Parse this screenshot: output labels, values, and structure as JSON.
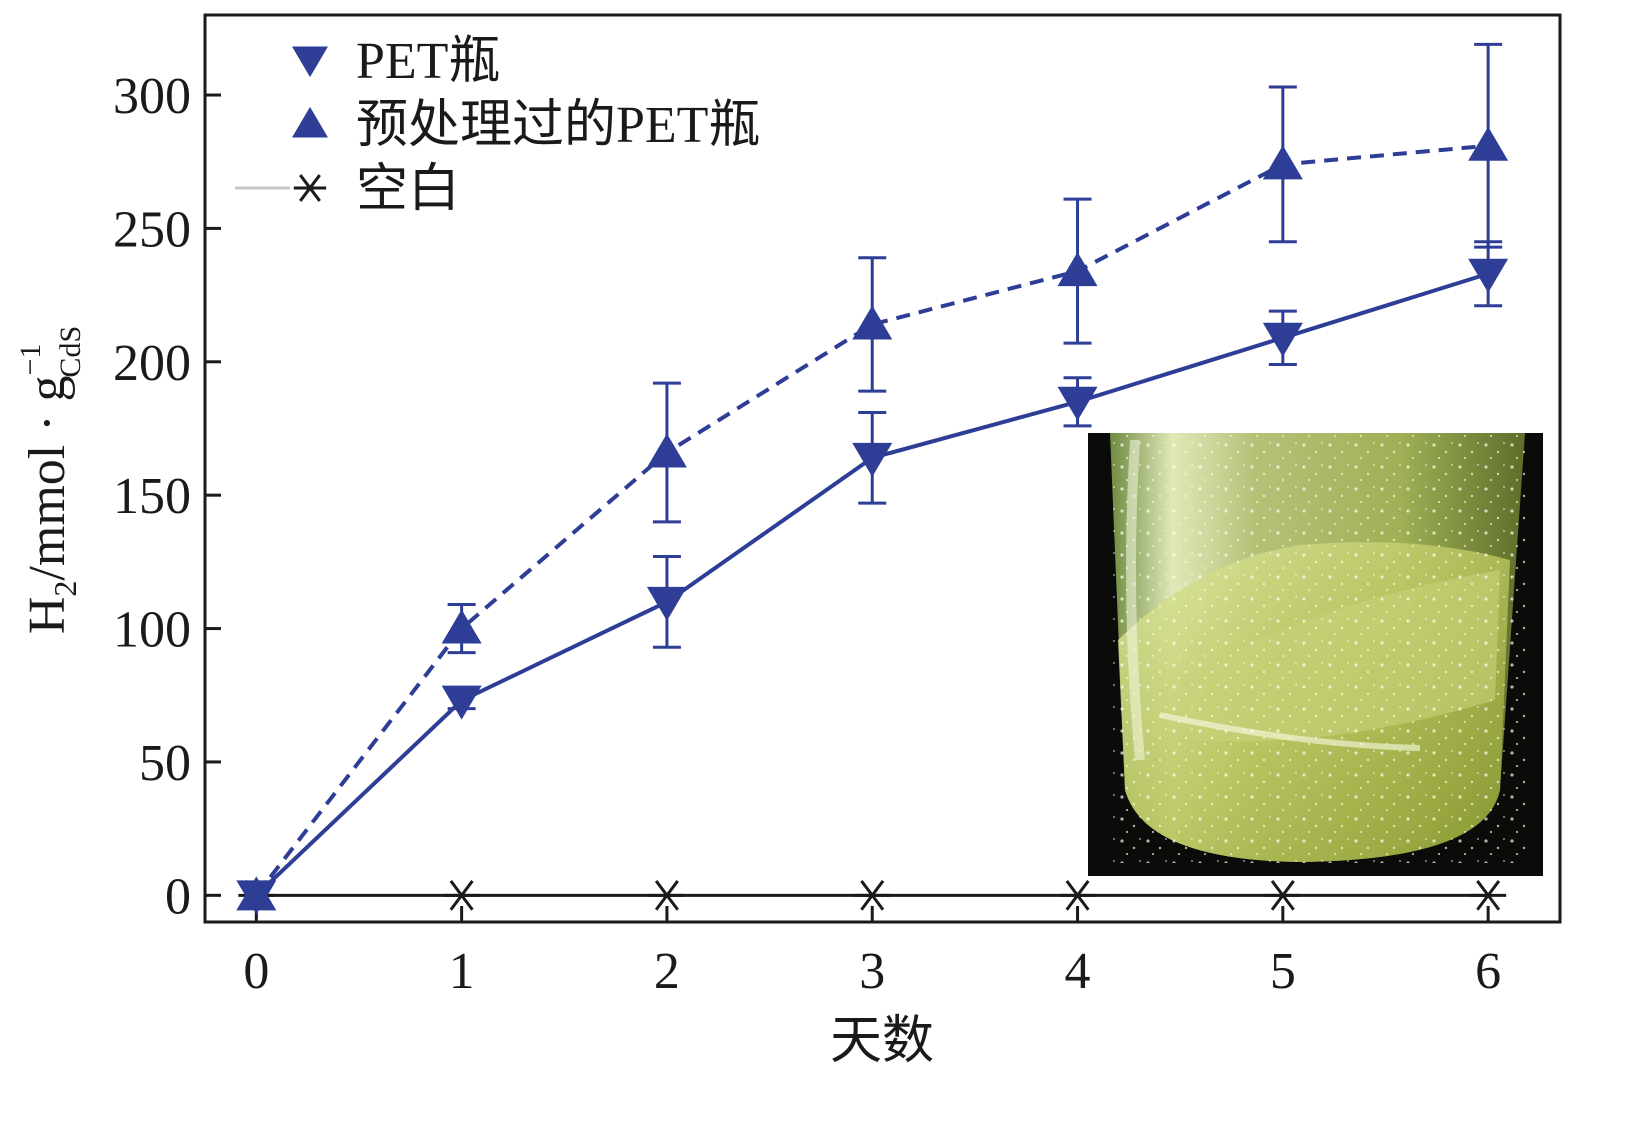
{
  "chart_data": {
    "type": "line",
    "xlabel": "天数",
    "ylabel": {
      "main": "H",
      "main_sub": "2",
      "unit": "/mmol · g",
      "unit_sup": "−1",
      "unit_sub": "CdS"
    },
    "x": [
      0,
      1,
      2,
      3,
      4,
      5,
      6
    ],
    "xlim": [
      -0.25,
      6.35
    ],
    "ylim": [
      -10,
      330
    ],
    "x_ticks": [
      "0",
      "1",
      "2",
      "3",
      "4",
      "5",
      "6"
    ],
    "y_ticks": [
      "0",
      "50",
      "100",
      "150",
      "200",
      "250",
      "300"
    ],
    "grid": false,
    "legend_position": "top-left",
    "series": [
      {
        "name": "PET瓶",
        "marker": "triangle-down",
        "line": "solid",
        "color": "#2e3e96",
        "values": [
          0,
          73,
          110,
          164,
          185,
          209,
          233
        ],
        "error": [
          0,
          3,
          17,
          17,
          9,
          10,
          12
        ]
      },
      {
        "name": "预处理过的PET瓶",
        "marker": "triangle-up",
        "line": "dashed",
        "color": "#2e3e96",
        "values": [
          0,
          100,
          166,
          214,
          234,
          274,
          281
        ],
        "error": [
          0,
          9,
          26,
          25,
          27,
          29,
          38
        ]
      },
      {
        "name": "空白",
        "marker": "asterisk",
        "line": "solid",
        "color": "#1a1a1a",
        "values": [
          0,
          0,
          0,
          0,
          0,
          0,
          0
        ],
        "error": [
          0,
          0,
          0,
          0,
          0,
          0,
          0
        ]
      }
    ],
    "inset": {
      "kind": "photo",
      "subject": "glass-vial-with-bubbles"
    }
  }
}
